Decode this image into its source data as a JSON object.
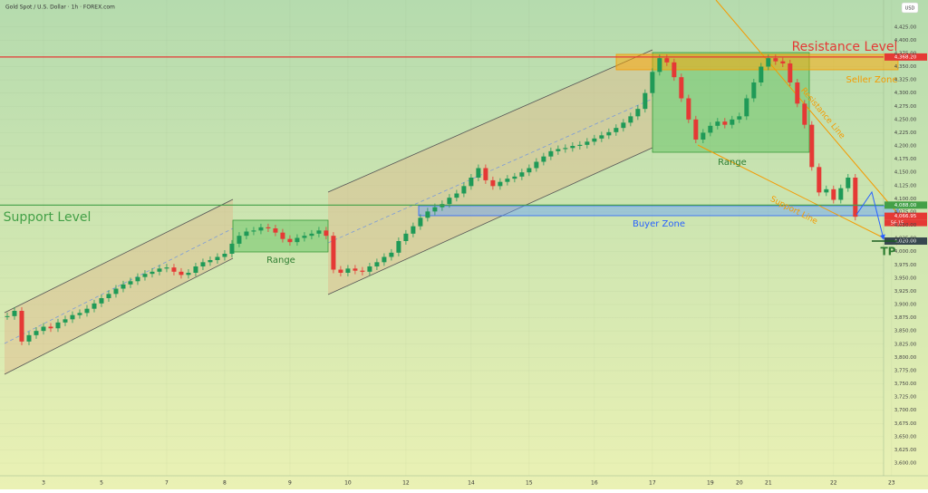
{
  "header": "Gold Spot / U.S. Dollar · 1h · FOREX.com",
  "currency": "USD",
  "chart_data": {
    "type": "candlestick",
    "close": [
      3878,
      3888,
      3830,
      3842,
      3850,
      3858,
      3855,
      3866,
      3872,
      3880,
      3884,
      3892,
      3902,
      3912,
      3920,
      3930,
      3938,
      3944,
      3952,
      3958,
      3962,
      3968,
      3970,
      3962,
      3956,
      3960,
      3972,
      3980,
      3984,
      3990,
      3996,
      4015,
      4030,
      4038,
      4040,
      4046,
      4044,
      4036,
      4024,
      4018,
      4026,
      4030,
      4034,
      4040,
      4030,
      3966,
      3960,
      3968,
      3964,
      3962,
      3972,
      3980,
      3990,
      3998,
      4020,
      4034,
      4048,
      4064,
      4076,
      4084,
      4090,
      4102,
      4110,
      4124,
      4140,
      4158,
      4135,
      4124,
      4132,
      4138,
      4142,
      4150,
      4158,
      4170,
      4180,
      4190,
      4194,
      4196,
      4200,
      4202,
      4208,
      4214,
      4220,
      4226,
      4234,
      4244,
      4256,
      4270,
      4300,
      4340,
      4366,
      4358,
      4330,
      4290,
      4250,
      4212,
      4225,
      4238,
      4246,
      4240,
      4250,
      4256,
      4290,
      4320,
      4350,
      4366,
      4360,
      4356,
      4320,
      4280,
      4240,
      4160,
      4112,
      4118,
      4098,
      4120,
      4140,
      4066
    ],
    "up_color": "#1f9a57",
    "down_color": "#e53935",
    "xlim": [
      -1,
      120.9
    ],
    "xticks": [
      {
        "value": 5,
        "label": "3"
      },
      {
        "value": 13,
        "label": "5"
      },
      {
        "value": 22,
        "label": "7"
      },
      {
        "value": 30,
        "label": "8"
      },
      {
        "value": 39,
        "label": "9"
      },
      {
        "value": 47,
        "label": "10"
      },
      {
        "value": 55,
        "label": "12"
      },
      {
        "value": 64,
        "label": "14"
      },
      {
        "value": 72,
        "label": "15"
      },
      {
        "value": 81,
        "label": "16"
      },
      {
        "value": 89,
        "label": "17"
      },
      {
        "value": 97,
        "label": "19"
      },
      {
        "value": 101,
        "label": "20"
      },
      {
        "value": 105,
        "label": "21"
      },
      {
        "value": 114,
        "label": "22"
      },
      {
        "value": 122,
        "label": "23"
      }
    ],
    "ylim": [
      3576,
      4476
    ],
    "yticks": [
      {
        "value": 3600,
        "label": "3,600.00"
      },
      {
        "value": 3625,
        "label": "3,625.00"
      },
      {
        "value": 3650,
        "label": "3,650.00"
      },
      {
        "value": 3675,
        "label": "3,675.00"
      },
      {
        "value": 3700,
        "label": "3,700.00"
      },
      {
        "value": 3725,
        "label": "3,725.00"
      },
      {
        "value": 3750,
        "label": "3,750.00"
      },
      {
        "value": 3775,
        "label": "3,775.00"
      },
      {
        "value": 3800,
        "label": "3,800.00"
      },
      {
        "value": 3825,
        "label": "3,825.00"
      },
      {
        "value": 3850,
        "label": "3,850.00"
      },
      {
        "value": 3875,
        "label": "3,875.00"
      },
      {
        "value": 3900,
        "label": "3,900.00"
      },
      {
        "value": 3925,
        "label": "3,925.00"
      },
      {
        "value": 3950,
        "label": "3,950.00"
      },
      {
        "value": 3975,
        "label": "3,975.00"
      },
      {
        "value": 4000,
        "label": "4,000.00"
      },
      {
        "value": 4025,
        "label": "4,025.00"
      },
      {
        "value": 4050,
        "label": "4,050.00"
      },
      {
        "value": 4075,
        "label": "4,075.00"
      },
      {
        "value": 4100,
        "label": "4,100.00"
      },
      {
        "value": 4125,
        "label": "4,125.00"
      },
      {
        "value": 4150,
        "label": "4,150.00"
      },
      {
        "value": 4175,
        "label": "4,175.00"
      },
      {
        "value": 4200,
        "label": "4,200.00"
      },
      {
        "value": 4225,
        "label": "4,225.00"
      },
      {
        "value": 4250,
        "label": "4,250.00"
      },
      {
        "value": 4275,
        "label": "4,275.00"
      },
      {
        "value": 4300,
        "label": "4,300.00"
      },
      {
        "value": 4325,
        "label": "4,325.00"
      },
      {
        "value": 4350,
        "label": "4,350.00"
      },
      {
        "value": 4375,
        "label": "4,375.00"
      },
      {
        "value": 4400,
        "label": "4,400.00"
      },
      {
        "value": 4425,
        "label": "4,425.00"
      }
    ],
    "levels": [
      {
        "value": 4368.2,
        "label": "4,368.20",
        "color": "#e53935",
        "line": true
      },
      {
        "value": 4088,
        "label": "4,088.00",
        "color": "#43a047",
        "line": true
      },
      {
        "value": 4066.95,
        "label": "4,066.95",
        "color": "#e53935",
        "line": false
      },
      {
        "value": 4020,
        "label": "4,020.00",
        "color": "#37474f",
        "line": false
      }
    ],
    "countdown": "56:15",
    "annotations": [
      "Resistance Level",
      "Seller Zone",
      "Resistance Line",
      "Range",
      "Range",
      "Support Level",
      "Buyer Zone",
      "Support Line",
      "TP"
    ]
  }
}
